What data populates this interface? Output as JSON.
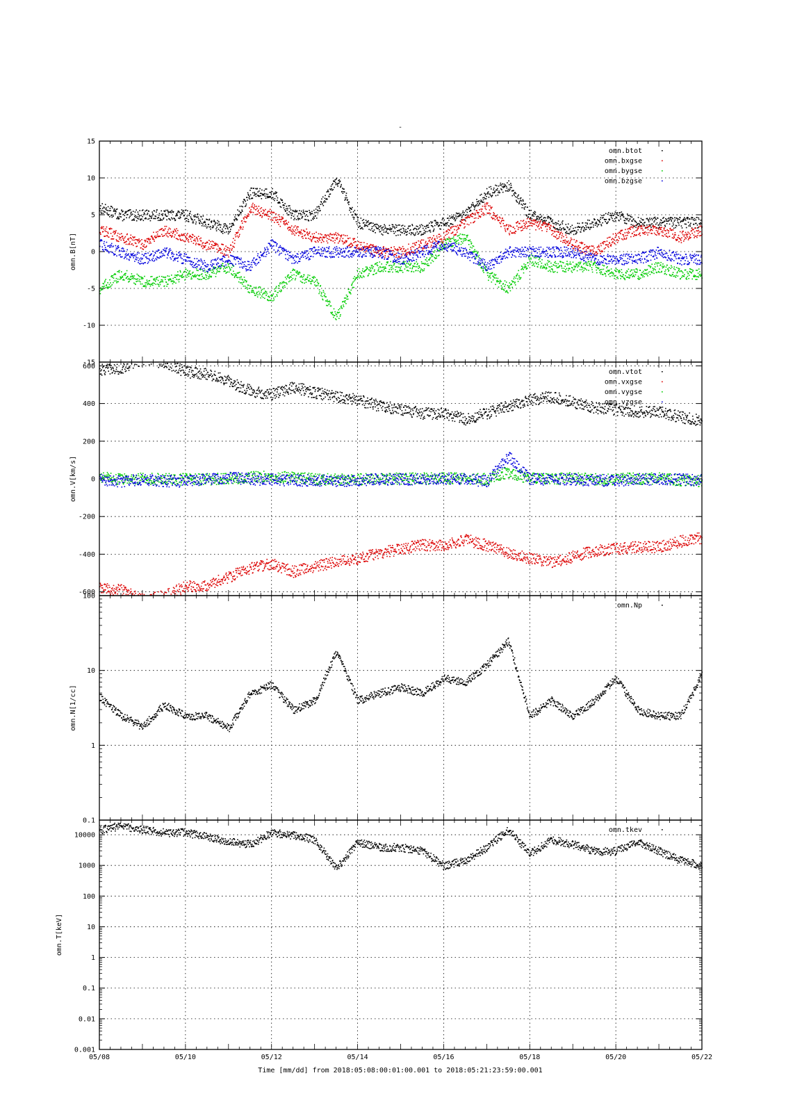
{
  "page_title": "-",
  "x_axis": {
    "title": "Time [mm/dd]  from 2018:05:08:00:01:00.001  to  2018:05:21:23:59:00.001",
    "start": "2018-05-08",
    "end": "2018-05-22",
    "ticks": [
      "05/08",
      "05/10",
      "05/12",
      "05/14",
      "05/16",
      "05/18",
      "05/20",
      "05/22"
    ]
  },
  "chart_data": [
    {
      "type": "scatter",
      "ylabel": "omn.B[nT]",
      "ylim": [
        -15,
        15
      ],
      "yscale": "linear",
      "yticks": [
        "15",
        "10",
        "5",
        "0",
        "-5",
        "-10",
        "-15"
      ],
      "grid": true,
      "legend_position": "top-right",
      "series": [
        {
          "name": "omn.btot",
          "color": "#000000",
          "x": [
            "05/08",
            "05/08 12h",
            "05/09",
            "05/09 12h",
            "05/10",
            "05/10 12h",
            "05/11",
            "05/11 12h",
            "05/12",
            "05/12 12h",
            "05/13",
            "05/13 12h",
            "05/14",
            "05/14 12h",
            "05/15",
            "05/15 12h",
            "05/16",
            "05/16 12h",
            "05/17",
            "05/17 12h",
            "05/18",
            "05/18 12h",
            "05/19",
            "05/19 12h",
            "05/20",
            "05/20 12h",
            "05/21",
            "05/21 12h",
            "05/22"
          ],
          "values": [
            6,
            5,
            5,
            5,
            5,
            4,
            3,
            8,
            8,
            5,
            5,
            10,
            4,
            3,
            3,
            3,
            4,
            5,
            8,
            9,
            5,
            4,
            3,
            4,
            5,
            4,
            4,
            4,
            4
          ]
        },
        {
          "name": "omn.bxgse",
          "color": "#dd0000",
          "x": [
            "05/08",
            "05/08 12h",
            "05/09",
            "05/09 12h",
            "05/10",
            "05/10 12h",
            "05/11",
            "05/11 12h",
            "05/12",
            "05/12 12h",
            "05/13",
            "05/13 12h",
            "05/14",
            "05/14 12h",
            "05/15",
            "05/15 12h",
            "05/16",
            "05/16 12h",
            "05/17",
            "05/17 12h",
            "05/18",
            "05/18 12h",
            "05/19",
            "05/19 12h",
            "05/20",
            "05/20 12h",
            "05/21",
            "05/21 12h",
            "05/22"
          ],
          "values": [
            3,
            2,
            1,
            3,
            2,
            1,
            0,
            6,
            5,
            3,
            2,
            2,
            1,
            0,
            0,
            1,
            2,
            4,
            6,
            3,
            4,
            3,
            1,
            0,
            2,
            3,
            3,
            2,
            3
          ]
        },
        {
          "name": "omn.bygse",
          "color": "#00cc00",
          "x": [
            "05/08",
            "05/08 12h",
            "05/09",
            "05/09 12h",
            "05/10",
            "05/10 12h",
            "05/11",
            "05/11 12h",
            "05/12",
            "05/12 12h",
            "05/13",
            "05/13 12h",
            "05/14",
            "05/14 12h",
            "05/15",
            "05/15 12h",
            "05/16",
            "05/16 12h",
            "05/17",
            "05/17 12h",
            "05/18",
            "05/18 12h",
            "05/19",
            "05/19 12h",
            "05/20",
            "05/20 12h",
            "05/21",
            "05/21 12h",
            "05/22"
          ],
          "values": [
            -5,
            -3,
            -4,
            -4,
            -3,
            -3,
            -2,
            -5,
            -6,
            -3,
            -4,
            -9,
            -3,
            -2,
            -2,
            -2,
            1,
            2,
            -3,
            -5,
            -1,
            -2,
            -2,
            -2,
            -3,
            -3,
            -2,
            -3,
            -3
          ]
        },
        {
          "name": "omn.bzgse",
          "color": "#0000dd",
          "x": [
            "05/08",
            "05/08 12h",
            "05/09",
            "05/09 12h",
            "05/10",
            "05/10 12h",
            "05/11",
            "05/11 12h",
            "05/12",
            "05/12 12h",
            "05/13",
            "05/13 12h",
            "05/14",
            "05/14 12h",
            "05/15",
            "05/15 12h",
            "05/16",
            "05/16 12h",
            "05/17",
            "05/17 12h",
            "05/18",
            "05/18 12h",
            "05/19",
            "05/19 12h",
            "05/20",
            "05/20 12h",
            "05/21",
            "05/21 12h",
            "05/22"
          ],
          "values": [
            1,
            0,
            -1,
            0,
            -1,
            -2,
            -1,
            -2,
            1,
            -1,
            0,
            0,
            0,
            0,
            -1,
            0,
            1,
            0,
            -2,
            0,
            0,
            0,
            0,
            -1,
            -1,
            -1,
            0,
            -1,
            -1
          ]
        }
      ]
    },
    {
      "type": "scatter",
      "ylabel": "omn.V[km/s]",
      "ylim": [
        -620,
        620
      ],
      "yscale": "linear",
      "yticks": [
        "600",
        "400",
        "200",
        "0",
        "-200",
        "-400",
        "-600"
      ],
      "grid": true,
      "legend_position": "top-right",
      "series": [
        {
          "name": "omn.vtot",
          "color": "#000000",
          "x": [
            "05/08",
            "05/08 12h",
            "05/09",
            "05/09 12h",
            "05/10",
            "05/10 12h",
            "05/11",
            "05/11 12h",
            "05/12",
            "05/12 12h",
            "05/13",
            "05/13 12h",
            "05/14",
            "05/14 12h",
            "05/15",
            "05/15 12h",
            "05/16",
            "05/16 12h",
            "05/17",
            "05/17 12h",
            "05/18",
            "05/18 12h",
            "05/19",
            "05/19 12h",
            "05/20",
            "05/20 12h",
            "05/21",
            "05/21 12h",
            "05/22"
          ],
          "values": [
            580,
            590,
            640,
            620,
            570,
            560,
            520,
            470,
            450,
            490,
            460,
            440,
            420,
            390,
            370,
            350,
            350,
            320,
            350,
            390,
            420,
            440,
            410,
            380,
            370,
            360,
            360,
            330,
            310
          ]
        },
        {
          "name": "omn.vxgse",
          "color": "#dd0000",
          "x": [
            "05/08",
            "05/08 12h",
            "05/09",
            "05/09 12h",
            "05/10",
            "05/10 12h",
            "05/11",
            "05/11 12h",
            "05/12",
            "05/12 12h",
            "05/13",
            "05/13 12h",
            "05/14",
            "05/14 12h",
            "05/15",
            "05/15 12h",
            "05/16",
            "05/16 12h",
            "05/17",
            "05/17 12h",
            "05/18",
            "05/18 12h",
            "05/19",
            "05/19 12h",
            "05/20",
            "05/20 12h",
            "05/21",
            "05/21 12h",
            "05/22"
          ],
          "values": [
            -580,
            -590,
            -640,
            -620,
            -570,
            -560,
            -520,
            -470,
            -450,
            -490,
            -460,
            -440,
            -420,
            -390,
            -370,
            -350,
            -350,
            -320,
            -350,
            -390,
            -420,
            -440,
            -410,
            -380,
            -370,
            -360,
            -360,
            -330,
            -310
          ]
        },
        {
          "name": "omn.vygse",
          "color": "#00cc00",
          "x": [
            "05/08",
            "05/08 12h",
            "05/09",
            "05/09 12h",
            "05/10",
            "05/10 12h",
            "05/11",
            "05/11 12h",
            "05/12",
            "05/12 12h",
            "05/13",
            "05/13 12h",
            "05/14",
            "05/14 12h",
            "05/15",
            "05/15 12h",
            "05/16",
            "05/16 12h",
            "05/17",
            "05/17 12h",
            "05/18",
            "05/18 12h",
            "05/19",
            "05/19 12h",
            "05/20",
            "05/20 12h",
            "05/21",
            "05/21 12h",
            "05/22"
          ],
          "values": [
            10,
            0,
            5,
            0,
            0,
            0,
            5,
            10,
            15,
            10,
            0,
            0,
            0,
            0,
            5,
            5,
            5,
            5,
            0,
            40,
            5,
            5,
            5,
            0,
            0,
            5,
            5,
            -5,
            -10
          ]
        },
        {
          "name": "omn.vzgse",
          "color": "#0000dd",
          "x": [
            "05/08",
            "05/08 12h",
            "05/09",
            "05/09 12h",
            "05/10",
            "05/10 12h",
            "05/11",
            "05/11 12h",
            "05/12",
            "05/12 12h",
            "05/13",
            "05/13 12h",
            "05/14",
            "05/14 12h",
            "05/15",
            "05/15 12h",
            "05/16",
            "05/16 12h",
            "05/17",
            "05/17 12h",
            "05/18",
            "05/18 12h",
            "05/19",
            "05/19 12h",
            "05/20",
            "05/20 12h",
            "05/21",
            "05/21 12h",
            "05/22"
          ],
          "values": [
            0,
            -10,
            0,
            -10,
            -10,
            0,
            10,
            0,
            0,
            -5,
            -5,
            -10,
            -5,
            0,
            0,
            0,
            5,
            0,
            -10,
            120,
            0,
            0,
            0,
            -5,
            -5,
            0,
            0,
            0,
            -5
          ]
        }
      ]
    },
    {
      "type": "scatter",
      "ylabel": "omn.N[1/cc]",
      "ylim": [
        0.1,
        100
      ],
      "yscale": "log",
      "yticks": [
        "100",
        "10",
        "1",
        "0.1"
      ],
      "grid": true,
      "legend_position": "top-right",
      "series": [
        {
          "name": "omn.Np",
          "color": "#000000",
          "x": [
            "05/08",
            "05/08 12h",
            "05/09",
            "05/09 12h",
            "05/10",
            "05/10 12h",
            "05/11",
            "05/11 12h",
            "05/12",
            "05/12 12h",
            "05/13",
            "05/13 12h",
            "05/14",
            "05/14 12h",
            "05/15",
            "05/15 12h",
            "05/16",
            "05/16 12h",
            "05/17",
            "05/17 12h",
            "05/18",
            "05/18 12h",
            "05/19",
            "05/19 12h",
            "05/20",
            "05/20 12h",
            "05/21",
            "05/21 12h",
            "05/22"
          ],
          "values": [
            4.5,
            2.5,
            1.8,
            3.5,
            2.5,
            2.5,
            1.7,
            5,
            6.5,
            3,
            4,
            18,
            4,
            5,
            6,
            5,
            8,
            7,
            12,
            25,
            2.5,
            4,
            2.5,
            4,
            8,
            3,
            2.5,
            2.5,
            9
          ]
        }
      ]
    },
    {
      "type": "scatter",
      "ylabel": "omn.T[keV]",
      "ylim": [
        0.001,
        30000
      ],
      "yscale": "log",
      "yticks": [
        "10000",
        "1000",
        "100",
        "10",
        "1",
        "0.1",
        "0.01",
        "0.001"
      ],
      "grid": true,
      "legend_position": "top-right",
      "series": [
        {
          "name": "omn.tkev",
          "color": "#000000",
          "x": [
            "05/08",
            "05/08 12h",
            "05/09",
            "05/09 12h",
            "05/10",
            "05/10 12h",
            "05/11",
            "05/11 12h",
            "05/12",
            "05/12 12h",
            "05/13",
            "05/13 12h",
            "05/14",
            "05/14 12h",
            "05/15",
            "05/15 12h",
            "05/16",
            "05/16 12h",
            "05/17",
            "05/17 12h",
            "05/18",
            "05/18 12h",
            "05/19",
            "05/19 12h",
            "05/20",
            "05/20 12h",
            "05/21",
            "05/21 12h",
            "05/22"
          ],
          "values": [
            15000,
            20000,
            15000,
            12000,
            12000,
            9000,
            6000,
            5000,
            12000,
            10000,
            7000,
            800,
            6000,
            4000,
            4000,
            3000,
            1000,
            1500,
            4000,
            15000,
            2500,
            7000,
            5000,
            3000,
            3000,
            6000,
            3000,
            1500,
            1000
          ]
        }
      ]
    }
  ]
}
